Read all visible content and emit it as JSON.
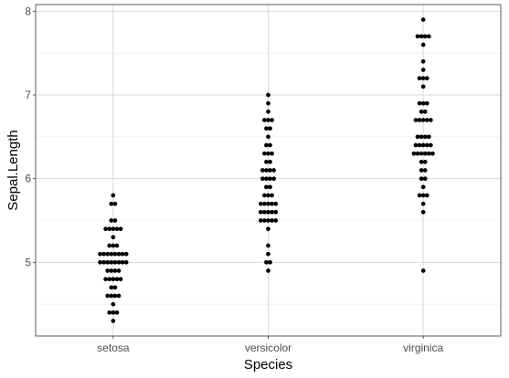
{
  "chart_data": {
    "type": "scatter",
    "style": "dotplot",
    "title": "",
    "xlabel": "Species",
    "ylabel": "Sepal.Length",
    "categories": [
      "setosa",
      "versicolor",
      "virginica"
    ],
    "ylim": [
      4.3,
      7.9
    ],
    "yticks": [
      5,
      6,
      7,
      8
    ],
    "y_tick_labels": [
      "5",
      "6",
      "7",
      "8"
    ],
    "grid": true,
    "legend": "none",
    "point_color": "#000000",
    "series": [
      {
        "category": "setosa",
        "values": [
          5.1,
          4.9,
          4.7,
          4.6,
          5.0,
          5.4,
          4.6,
          5.0,
          4.4,
          4.9,
          5.4,
          4.8,
          4.8,
          4.3,
          5.8,
          5.7,
          5.4,
          5.1,
          5.7,
          5.1,
          5.4,
          5.1,
          4.6,
          5.1,
          4.8,
          5.0,
          5.0,
          5.2,
          5.2,
          4.7,
          4.8,
          5.4,
          5.2,
          5.5,
          4.9,
          5.0,
          5.5,
          4.9,
          4.4,
          5.1,
          5.0,
          4.5,
          4.4,
          5.0,
          5.1,
          4.8,
          5.1,
          4.6,
          5.3,
          5.0
        ]
      },
      {
        "category": "versicolor",
        "values": [
          7.0,
          6.4,
          6.9,
          5.5,
          6.5,
          5.7,
          6.3,
          4.9,
          6.6,
          5.2,
          5.0,
          5.9,
          6.0,
          6.1,
          5.6,
          6.7,
          5.6,
          5.8,
          6.2,
          5.6,
          5.9,
          6.1,
          6.3,
          6.1,
          6.4,
          6.6,
          6.8,
          6.7,
          6.0,
          5.7,
          5.5,
          5.5,
          5.8,
          6.0,
          5.4,
          6.0,
          6.7,
          6.3,
          5.6,
          5.5,
          5.5,
          6.1,
          5.8,
          5.0,
          5.6,
          5.7,
          5.7,
          6.2,
          5.1,
          5.7
        ]
      },
      {
        "category": "virginica",
        "values": [
          6.3,
          5.8,
          7.1,
          6.3,
          6.5,
          7.6,
          4.9,
          7.3,
          6.7,
          7.2,
          6.5,
          6.4,
          6.8,
          5.7,
          5.8,
          6.4,
          6.5,
          7.7,
          7.7,
          6.0,
          6.9,
          5.6,
          7.7,
          6.3,
          6.7,
          7.2,
          6.2,
          6.1,
          6.4,
          7.2,
          7.4,
          7.9,
          6.4,
          6.3,
          6.1,
          7.7,
          6.3,
          6.4,
          6.0,
          6.9,
          6.7,
          6.9,
          5.8,
          6.8,
          6.7,
          6.7,
          6.3,
          6.5,
          6.2,
          5.9
        ]
      }
    ]
  }
}
